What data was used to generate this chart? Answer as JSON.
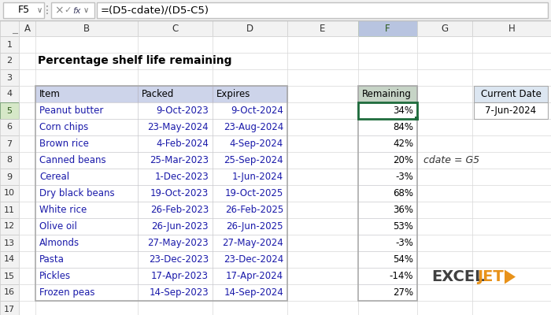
{
  "title": "Percentage shelf life remaining",
  "formula_bar_cell": "F5",
  "formula_bar_formula": "=(D5-cdate)/(D5-C5)",
  "col_headers": [
    "A",
    "B",
    "C",
    "D",
    "E",
    "F",
    "G",
    "H"
  ],
  "main_headers": [
    "Item",
    "Packed",
    "Expires"
  ],
  "remaining_header": "Remaining",
  "items": [
    "Peanut butter",
    "Corn chips",
    "Brown rice",
    "Canned beans",
    "Cereal",
    "Dry black beans",
    "White rice",
    "Olive oil",
    "Almonds",
    "Pasta",
    "Pickles",
    "Frozen peas"
  ],
  "packed": [
    "9-Oct-2023",
    "23-May-2024",
    "4-Feb-2024",
    "25-Mar-2023",
    "1-Dec-2023",
    "19-Oct-2023",
    "26-Feb-2023",
    "26-Jun-2023",
    "27-May-2023",
    "23-Dec-2023",
    "17-Apr-2023",
    "14-Sep-2023"
  ],
  "expires": [
    "9-Oct-2024",
    "23-Aug-2024",
    "4-Sep-2024",
    "25-Sep-2024",
    "1-Jun-2024",
    "19-Oct-2025",
    "26-Feb-2025",
    "26-Jun-2025",
    "27-May-2024",
    "23-Dec-2024",
    "17-Apr-2024",
    "14-Sep-2024"
  ],
  "remaining": [
    "34%",
    "84%",
    "42%",
    "20%",
    "-3%",
    "68%",
    "36%",
    "53%",
    "-3%",
    "54%",
    "-14%",
    "27%"
  ],
  "current_date_label": "Current Date",
  "current_date_value": "7-Jun-2024",
  "cdate_note": "cdate = G5",
  "header_bg": "#cdd4ea",
  "remaining_header_bg": "#c6d4c6",
  "current_date_bg": "#dce6f1",
  "selected_cell_border": "#1e6b3c",
  "top_bar_bg": "#f2f2f2",
  "grid_line_color": "#d0d0d0",
  "col_header_bg": "#f2f2f2",
  "row_header_bg": "#f2f2f2",
  "active_col_header_bg": "#b8c4e0",
  "active_row_header_bg": "#d6e8c8",
  "exceljet_dark": "#404040",
  "exceljet_orange": "#e8921a",
  "bg_color": "#ffffff",
  "table_text_color": "#1a1aaa",
  "normal_text_color": "#000000",
  "row_header_active_text": "#2d5a1b"
}
